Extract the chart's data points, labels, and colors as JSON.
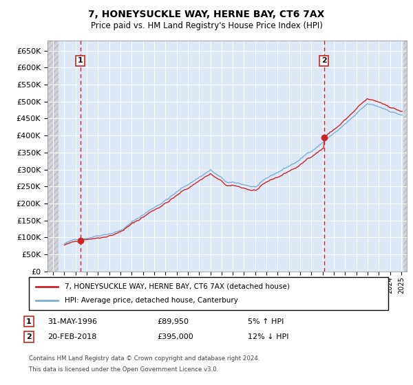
{
  "title": "7, HONEYSUCKLE WAY, HERNE BAY, CT6 7AX",
  "subtitle": "Price paid vs. HM Land Registry's House Price Index (HPI)",
  "ylim": [
    0,
    680000
  ],
  "yticks": [
    0,
    50000,
    100000,
    150000,
    200000,
    250000,
    300000,
    350000,
    400000,
    450000,
    500000,
    550000,
    600000,
    650000
  ],
  "legend_line1": "7, HONEYSUCKLE WAY, HERNE BAY, CT6 7AX (detached house)",
  "legend_line2": "HPI: Average price, detached house, Canterbury",
  "annotation1_label": "1",
  "annotation1_date": "31-MAY-1996",
  "annotation1_price": "£89,950",
  "annotation1_hpi": "5% ↑ HPI",
  "annotation2_label": "2",
  "annotation2_date": "20-FEB-2018",
  "annotation2_price": "£395,000",
  "annotation2_hpi": "12% ↓ HPI",
  "footnote1": "Contains HM Land Registry data © Crown copyright and database right 2024.",
  "footnote2": "This data is licensed under the Open Government Licence v3.0.",
  "hpi_color": "#7aadd4",
  "price_color": "#cc2222",
  "marker_color": "#cc2222",
  "vline_color": "#cc2222",
  "annotation_box_color": "#cc2222",
  "background_color": "#ffffff",
  "plot_bg_color": "#dce8f5",
  "grid_color": "#ffffff",
  "purchase1_x": 1996.42,
  "purchase1_y": 89950,
  "purchase2_x": 2018.12,
  "purchase2_y": 395000,
  "xmin": 1993.5,
  "xmax": 2025.5
}
